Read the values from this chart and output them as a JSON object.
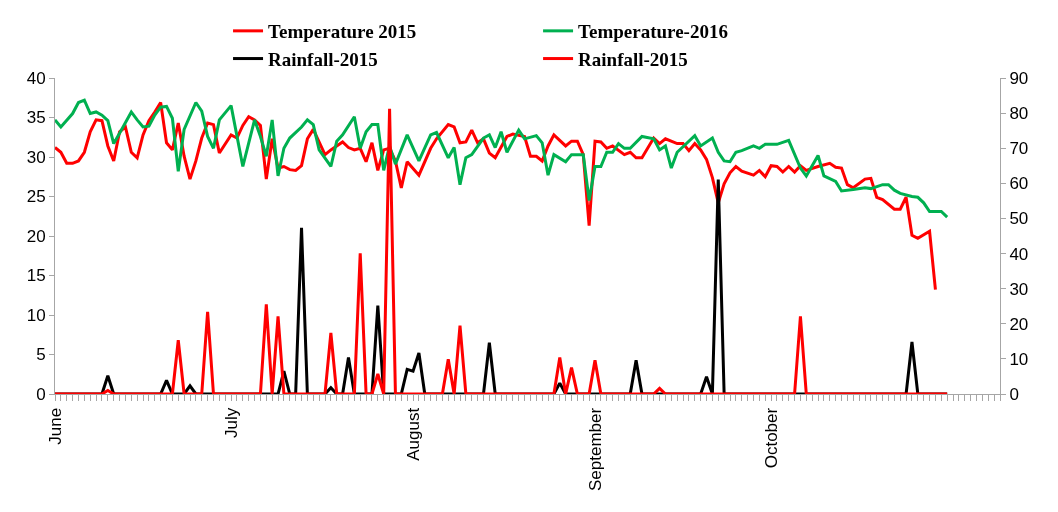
{
  "chart_data": {
    "type": "line",
    "legend": "top",
    "grid": false,
    "xlim": [
      "--06-01",
      "--11-09"
    ],
    "xticks": [
      {
        "value": "--06-01",
        "label": "June"
      },
      {
        "value": "--07-01",
        "label": "July"
      },
      {
        "value": "--08-01",
        "label": "August"
      },
      {
        "value": "--09-01",
        "label": "September"
      },
      {
        "value": "--10-01",
        "label": "October"
      }
    ],
    "ylim": [
      0,
      40
    ],
    "yticks": [
      0,
      5,
      10,
      15,
      20,
      25,
      30,
      35,
      40
    ],
    "y2lim": [
      0,
      90
    ],
    "y2ticks": [
      0,
      10,
      20,
      30,
      40,
      50,
      60,
      70,
      80,
      90
    ],
    "series": [
      {
        "name": "Temperature 2015",
        "color": "#ff0000",
        "x": [
          "--06-01",
          "--06-02",
          "--06-03",
          "--06-04",
          "--06-05",
          "--06-06",
          "--06-07",
          "--06-08",
          "--06-09",
          "--06-10",
          "--06-11",
          "--06-12",
          "--06-13",
          "--06-14",
          "--06-15",
          "--06-16",
          "--06-17",
          "--06-18",
          "--06-19",
          "--06-20",
          "--06-21",
          "--06-22",
          "--06-23",
          "--06-24",
          "--06-25",
          "--06-26",
          "--06-27",
          "--06-28",
          "--06-29",
          "--07-01",
          "--07-02",
          "--07-03",
          "--07-04",
          "--07-05",
          "--07-06",
          "--07-07",
          "--07-08",
          "--07-09",
          "--07-10",
          "--07-11",
          "--07-12",
          "--07-13",
          "--07-14",
          "--07-15",
          "--07-17",
          "--07-18",
          "--07-20",
          "--07-21",
          "--07-22",
          "--07-23",
          "--07-24",
          "--07-25",
          "--07-26",
          "--07-27",
          "--07-28",
          "--07-29",
          "--07-30",
          "--07-31",
          "--08-02",
          "--08-04",
          "--08-05",
          "--08-07",
          "--08-08",
          "--08-09",
          "--08-10",
          "--08-11",
          "--08-12",
          "--08-13",
          "--08-14",
          "--08-15",
          "--08-17",
          "--08-18",
          "--08-20",
          "--08-21",
          "--08-22",
          "--08-23",
          "--08-24",
          "--08-25",
          "--08-27",
          "--08-28",
          "--08-29",
          "--08-30",
          "--08-31",
          "--09-01",
          "--09-02",
          "--09-03",
          "--09-04",
          "--09-06",
          "--09-07",
          "--09-08",
          "--09-09",
          "--09-11",
          "--09-12",
          "--09-13",
          "--09-15",
          "--09-16",
          "--09-17",
          "--09-18",
          "--09-19",
          "--09-20",
          "--09-21",
          "--09-22",
          "--09-23",
          "--09-24",
          "--09-25",
          "--09-26",
          "--09-28",
          "--09-29",
          "--09-30",
          "--10-01",
          "--10-02",
          "--10-03",
          "--10-04",
          "--10-05",
          "--10-06",
          "--10-07",
          "--10-09",
          "--10-11",
          "--10-12",
          "--10-13",
          "--10-14",
          "--10-15",
          "--10-17",
          "--10-18",
          "--10-19",
          "--10-20",
          "--10-22",
          "--10-23",
          "--10-24",
          "--10-25",
          "--10-26",
          "--10-28",
          "--10-29"
        ],
        "values": [
          31.2,
          30.6,
          29.2,
          29.2,
          29.5,
          30.6,
          33.2,
          34.7,
          34.6,
          31.4,
          29.5,
          33.2,
          33.8,
          30.6,
          29.9,
          32.8,
          34.6,
          35.7,
          36.9,
          31.8,
          30.9,
          34.3,
          30.1,
          27.2,
          29.5,
          32.4,
          34.3,
          34.1,
          30.5,
          32.8,
          32.4,
          34,
          35.1,
          34.7,
          34,
          27.2,
          32.3,
          28.6,
          28.8,
          28.4,
          28.3,
          28.9,
          32.3,
          33.5,
          30.3,
          30.9,
          31.9,
          31.2,
          30.9,
          31.1,
          29.4,
          31.8,
          28.3,
          30.9,
          31.1,
          29.5,
          26.1,
          29.4,
          27.7,
          31.1,
          32.3,
          34.1,
          33.8,
          31.8,
          31.9,
          33.4,
          31.8,
          32.3,
          30.5,
          29.9,
          32.6,
          32.9,
          32.6,
          30.1,
          30.1,
          29.5,
          31.4,
          32.8,
          31.4,
          32,
          32,
          30.3,
          21.3,
          32,
          31.9,
          31.1,
          31.4,
          30.3,
          30.6,
          29.9,
          29.9,
          32.4,
          31.7,
          32.3,
          31.7,
          31.7,
          30.8,
          31.7,
          30.9,
          29.7,
          27.4,
          24.2,
          26.6,
          28,
          28.8,
          28.2,
          27.7,
          28.3,
          27.5,
          28.9,
          28.8,
          28.1,
          28.8,
          28.1,
          28.9,
          28.3,
          28.8,
          29.2,
          28.7,
          28.6,
          26.5,
          26.1,
          27.2,
          27.3,
          24.9,
          24.6,
          23.4,
          23.4,
          24.9,
          20.1,
          19.7,
          20.6,
          13.2
        ]
      },
      {
        "name": "Temperature-2016",
        "color": "#00b050",
        "x": [
          "--06-01",
          "--06-02",
          "--06-04",
          "--06-05",
          "--06-06",
          "--06-07",
          "--06-08",
          "--06-09",
          "--06-10",
          "--06-11",
          "--06-12",
          "--06-14",
          "--06-15",
          "--06-16",
          "--06-17",
          "--06-18",
          "--06-19",
          "--06-20",
          "--06-21",
          "--06-22",
          "--06-23",
          "--06-25",
          "--06-26",
          "--06-27",
          "--06-28",
          "--06-29",
          "--07-01",
          "--07-03",
          "--07-05",
          "--07-06",
          "--07-07",
          "--07-08",
          "--07-09",
          "--07-10",
          "--07-11",
          "--07-13",
          "--07-14",
          "--07-15",
          "--07-16",
          "--07-18",
          "--07-19",
          "--07-20",
          "--07-22",
          "--07-23",
          "--07-24",
          "--07-25",
          "--07-26",
          "--07-27",
          "--07-28",
          "--07-29",
          "--07-31",
          "--08-02",
          "--08-04",
          "--08-05",
          "--08-07",
          "--08-08",
          "--08-09",
          "--08-10",
          "--08-11",
          "--08-13",
          "--08-14",
          "--08-15",
          "--08-16",
          "--08-17",
          "--08-19",
          "--08-20",
          "--08-22",
          "--08-23",
          "--08-24",
          "--08-25",
          "--08-27",
          "--08-28",
          "--08-30",
          "--08-31",
          "--09-01",
          "--09-02",
          "--09-03",
          "--09-04",
          "--09-05",
          "--09-06",
          "--09-07",
          "--09-09",
          "--09-11",
          "--09-12",
          "--09-13",
          "--09-14",
          "--09-15",
          "--09-18",
          "--09-19",
          "--09-21",
          "--09-22",
          "--09-23",
          "--09-24",
          "--09-25",
          "--09-26",
          "--09-28",
          "--09-29",
          "--09-30",
          "--10-02",
          "--10-04",
          "--10-06",
          "--10-07",
          "--10-09",
          "--10-10",
          "--10-12",
          "--10-13",
          "--10-15",
          "--10-17",
          "--10-18",
          "--10-20",
          "--10-21",
          "--10-22",
          "--10-23",
          "--10-25",
          "--10-26",
          "--10-27",
          "--10-28",
          "--10-30",
          "--10-31"
        ],
        "values": [
          34.7,
          33.8,
          35.5,
          36.9,
          37.2,
          35.5,
          35.7,
          35.3,
          34.6,
          31.7,
          33,
          35.7,
          34.7,
          33.8,
          33.9,
          35.3,
          36.3,
          36.4,
          34.9,
          28.2,
          33.5,
          36.9,
          35.8,
          32.6,
          31.1,
          34.7,
          36.5,
          28.8,
          34.7,
          32.6,
          30.1,
          34.7,
          27.6,
          31.1,
          32.4,
          33.8,
          34.7,
          34.1,
          30.9,
          28.8,
          32,
          32.8,
          35.1,
          31.1,
          33.2,
          34.1,
          34.1,
          28.3,
          31.4,
          29.1,
          32.8,
          29.5,
          32.8,
          33.1,
          29.9,
          31.2,
          26.5,
          29.9,
          30.3,
          32.4,
          32.8,
          31.2,
          33.2,
          30.6,
          33.4,
          32.3,
          32.7,
          31.8,
          27.7,
          30.3,
          29.4,
          30.3,
          30.3,
          24.5,
          28.8,
          28.8,
          30.6,
          30.6,
          31.7,
          31.1,
          31.1,
          32.6,
          32.3,
          30.9,
          31.4,
          28.6,
          30.6,
          32.7,
          31.4,
          32.4,
          30.6,
          29.5,
          29.4,
          30.6,
          30.8,
          31.4,
          31.1,
          31.6,
          31.6,
          32.1,
          28.6,
          27.6,
          30.2,
          27.6,
          26.9,
          25.7,
          25.9,
          26.1,
          26,
          26.5,
          26.5,
          25.8,
          25.4,
          25,
          24.9,
          24.2,
          23.1,
          23.1,
          22.4
        ]
      },
      {
        "name": "Rainfall-2015",
        "color": "#000000",
        "axis": "y2",
        "x": [
          "--06-01",
          "--06-09",
          "--06-10",
          "--06-11",
          "--06-19",
          "--06-20",
          "--06-21",
          "--06-23",
          "--06-24",
          "--06-25",
          "--07-09",
          "--07-10",
          "--07-11",
          "--07-12",
          "--07-13",
          "--07-14",
          "--07-17",
          "--07-18",
          "--07-19",
          "--07-20",
          "--07-21",
          "--07-22",
          "--07-25",
          "--07-26",
          "--07-27",
          "--07-30",
          "--07-31",
          "--08-01",
          "--08-02",
          "--08-03",
          "--08-13",
          "--08-14",
          "--08-15",
          "--08-25",
          "--08-26",
          "--08-27",
          "--09-07",
          "--09-08",
          "--09-09",
          "--09-19",
          "--09-20",
          "--09-21",
          "--09-22",
          "--09-23",
          "--10-24",
          "--10-25",
          "--10-26",
          "--10-31"
        ],
        "values": [
          0,
          0,
          5.2,
          0,
          0,
          3.9,
          0,
          0,
          2.3,
          0,
          0,
          6.5,
          0,
          0,
          47.3,
          0,
          0,
          1.8,
          0,
          0,
          10.4,
          0,
          0,
          25.2,
          0,
          0,
          7,
          6.5,
          11.7,
          0,
          0,
          14.6,
          0,
          0,
          3.1,
          0,
          0,
          9.6,
          0,
          0,
          4.9,
          0,
          61.1,
          0,
          0,
          14.8,
          0,
          0
        ]
      },
      {
        "name": "Rainfall-2015",
        "color": "#ff0000",
        "axis": "y2",
        "x": [
          "--06-01",
          "--06-09",
          "--06-10",
          "--06-11",
          "--06-21",
          "--06-22",
          "--06-23",
          "--06-26",
          "--06-27",
          "--06-28",
          "--07-06",
          "--07-07",
          "--07-08",
          "--07-09",
          "--07-10",
          "--07-17",
          "--07-18",
          "--07-19",
          "--07-22",
          "--07-23",
          "--07-24",
          "--07-25",
          "--07-26",
          "--07-27",
          "--07-28",
          "--07-29",
          "--08-06",
          "--08-07",
          "--08-08",
          "--08-09",
          "--08-10",
          "--08-25",
          "--08-26",
          "--08-27",
          "--08-28",
          "--08-29",
          "--08-31",
          "--09-01",
          "--09-02",
          "--09-11",
          "--09-12",
          "--09-13",
          "--10-05",
          "--10-06",
          "--10-07",
          "--10-31"
        ],
        "values": [
          0,
          0,
          1,
          0,
          0,
          15.3,
          0,
          0,
          23.4,
          0,
          0,
          25.5,
          0,
          22.1,
          0,
          0,
          17.4,
          0,
          0,
          40.1,
          0,
          0,
          5.7,
          0,
          81.2,
          0,
          0,
          9.9,
          0,
          19.5,
          0,
          0,
          10.4,
          0,
          7.5,
          0,
          0,
          9.6,
          0,
          0,
          1.6,
          0,
          0,
          22.1,
          0,
          0
        ]
      }
    ]
  }
}
